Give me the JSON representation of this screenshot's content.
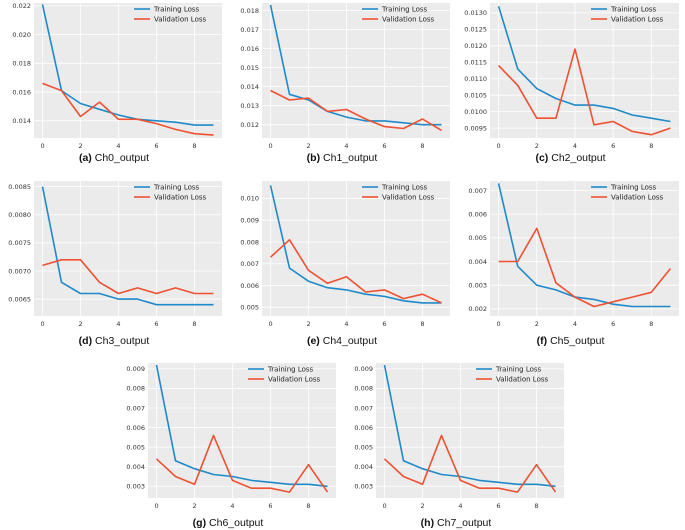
{
  "colors": {
    "training": "#1f8ac9",
    "validation": "#ef5131",
    "plot_bg": "#ebebeb",
    "grid": "#ffffff"
  },
  "chart_data": [
    {
      "id": "a",
      "type": "line",
      "label": "(a)",
      "caption": "Ch0_output",
      "x": [
        0,
        1,
        2,
        3,
        4,
        5,
        6,
        7,
        8,
        9
      ],
      "xticks": [
        0,
        2,
        4,
        6,
        8
      ],
      "ylim": [
        0.0128,
        0.0222
      ],
      "yticks": [
        0.014,
        0.016,
        0.018,
        0.02,
        0.022
      ],
      "ytick_labels": [
        "0.014",
        "0.016",
        "0.018",
        "0.020",
        "0.022"
      ],
      "series": [
        {
          "name": "Training Loss",
          "values": [
            0.0221,
            0.0161,
            0.0152,
            0.0148,
            0.0144,
            0.0141,
            0.014,
            0.0139,
            0.0137,
            0.0137
          ]
        },
        {
          "name": "Validation Loss",
          "values": [
            0.0166,
            0.0161,
            0.0143,
            0.0153,
            0.0141,
            0.0141,
            0.0138,
            0.0134,
            0.0131,
            0.013
          ]
        }
      ]
    },
    {
      "id": "b",
      "type": "line",
      "label": "(b)",
      "caption": "Ch1_output",
      "x": [
        0,
        1,
        2,
        3,
        4,
        5,
        6,
        7,
        8,
        9
      ],
      "xticks": [
        0,
        2,
        4,
        6,
        8
      ],
      "ylim": [
        0.0113,
        0.0184
      ],
      "yticks": [
        0.012,
        0.013,
        0.014,
        0.015,
        0.016,
        0.017,
        0.018
      ],
      "ytick_labels": [
        "0.012",
        "0.013",
        "0.014",
        "0.015",
        "0.016",
        "0.017",
        "0.018"
      ],
      "series": [
        {
          "name": "Training Loss",
          "values": [
            0.0183,
            0.0136,
            0.0133,
            0.0127,
            0.0124,
            0.0122,
            0.0122,
            0.0121,
            0.012,
            0.012
          ]
        },
        {
          "name": "Validation Loss",
          "values": [
            0.0138,
            0.0133,
            0.0134,
            0.0127,
            0.0128,
            0.0123,
            0.0119,
            0.0118,
            0.0123,
            0.0117
          ]
        }
      ]
    },
    {
      "id": "c",
      "type": "line",
      "label": "(c)",
      "caption": "Ch2_output",
      "x": [
        0,
        1,
        2,
        3,
        4,
        5,
        6,
        7,
        8,
        9
      ],
      "xticks": [
        0,
        2,
        4,
        6,
        8
      ],
      "ylim": [
        0.0092,
        0.0133
      ],
      "yticks": [
        0.0095,
        0.01,
        0.0105,
        0.011,
        0.0115,
        0.012,
        0.0125,
        0.013
      ],
      "ytick_labels": [
        "0.0095",
        "0.0100",
        "0.0105",
        "0.0110",
        "0.0115",
        "0.0120",
        "0.0125",
        "0.0130"
      ],
      "series": [
        {
          "name": "Training Loss",
          "values": [
            0.0132,
            0.0113,
            0.0107,
            0.0104,
            0.0102,
            0.0102,
            0.0101,
            0.0099,
            0.0098,
            0.0097
          ]
        },
        {
          "name": "Validation Loss",
          "values": [
            0.0114,
            0.0108,
            0.0098,
            0.0098,
            0.0119,
            0.0096,
            0.0097,
            0.0094,
            0.0093,
            0.0095
          ]
        }
      ]
    },
    {
      "id": "d",
      "type": "line",
      "label": "(d)",
      "caption": "Ch3_output",
      "x": [
        0,
        1,
        2,
        3,
        4,
        5,
        6,
        7,
        8,
        9
      ],
      "xticks": [
        0,
        2,
        4,
        6,
        8
      ],
      "ylim": [
        0.0062,
        0.0086
      ],
      "yticks": [
        0.0065,
        0.007,
        0.0075,
        0.008,
        0.0085
      ],
      "ytick_labels": [
        "0.0065",
        "0.0070",
        "0.0075",
        "0.0080",
        "0.0085"
      ],
      "series": [
        {
          "name": "Training Loss",
          "values": [
            0.0085,
            0.0068,
            0.0066,
            0.0066,
            0.0065,
            0.0065,
            0.0064,
            0.0064,
            0.0064,
            0.0064
          ]
        },
        {
          "name": "Validation Loss",
          "values": [
            0.0071,
            0.0072,
            0.0072,
            0.0068,
            0.0066,
            0.0067,
            0.0066,
            0.0067,
            0.0066,
            0.0066
          ]
        }
      ]
    },
    {
      "id": "e",
      "type": "line",
      "label": "(e)",
      "caption": "Ch4_output",
      "x": [
        0,
        1,
        2,
        3,
        4,
        5,
        6,
        7,
        8,
        9
      ],
      "xticks": [
        0,
        2,
        4,
        6,
        8
      ],
      "ylim": [
        0.0046,
        0.0108
      ],
      "yticks": [
        0.005,
        0.006,
        0.007,
        0.008,
        0.009,
        0.01
      ],
      "ytick_labels": [
        "0.005",
        "0.006",
        "0.007",
        "0.008",
        "0.009",
        "0.010"
      ],
      "series": [
        {
          "name": "Training Loss",
          "values": [
            0.0106,
            0.0068,
            0.0062,
            0.0059,
            0.0058,
            0.0056,
            0.0055,
            0.0053,
            0.0052,
            0.0052
          ]
        },
        {
          "name": "Validation Loss",
          "values": [
            0.0073,
            0.0081,
            0.0067,
            0.0061,
            0.0064,
            0.0057,
            0.0058,
            0.0054,
            0.0056,
            0.0052
          ]
        }
      ]
    },
    {
      "id": "f",
      "type": "line",
      "label": "(f)",
      "caption": "Ch5_output",
      "x": [
        0,
        1,
        2,
        3,
        4,
        5,
        6,
        7,
        8,
        9
      ],
      "xticks": [
        0,
        2,
        4,
        6,
        8
      ],
      "ylim": [
        0.0017,
        0.0074
      ],
      "yticks": [
        0.002,
        0.003,
        0.004,
        0.005,
        0.006,
        0.007
      ],
      "ytick_labels": [
        "0.002",
        "0.003",
        "0.004",
        "0.005",
        "0.006",
        "0.007"
      ],
      "series": [
        {
          "name": "Training Loss",
          "values": [
            0.0073,
            0.0038,
            0.003,
            0.0028,
            0.0025,
            0.0024,
            0.0022,
            0.0021,
            0.0021,
            0.0021
          ]
        },
        {
          "name": "Validation Loss",
          "values": [
            0.004,
            0.004,
            0.0054,
            0.0031,
            0.0025,
            0.0021,
            0.0023,
            0.0025,
            0.0027,
            0.0037
          ]
        }
      ]
    },
    {
      "id": "g",
      "type": "line",
      "label": "(g)",
      "caption": "Ch6_output",
      "x": [
        0,
        1,
        2,
        3,
        4,
        5,
        6,
        7,
        8,
        9
      ],
      "xticks": [
        0,
        2,
        4,
        6,
        8
      ],
      "ylim": [
        0.0024,
        0.0093
      ],
      "yticks": [
        0.003,
        0.004,
        0.005,
        0.006,
        0.007,
        0.008,
        0.009
      ],
      "ytick_labels": [
        "0.003",
        "0.004",
        "0.005",
        "0.006",
        "0.007",
        "0.008",
        "0.009"
      ],
      "series": [
        {
          "name": "Training Loss",
          "values": [
            0.0092,
            0.0043,
            0.0039,
            0.0036,
            0.0035,
            0.0033,
            0.0032,
            0.0031,
            0.0031,
            0.003
          ]
        },
        {
          "name": "Validation Loss",
          "values": [
            0.0044,
            0.0035,
            0.0031,
            0.0056,
            0.0033,
            0.0029,
            0.0029,
            0.0027,
            0.0041,
            0.0027
          ]
        }
      ]
    },
    {
      "id": "h",
      "type": "line",
      "label": "(h)",
      "caption": "Ch7_output",
      "x": [
        0,
        1,
        2,
        3,
        4,
        5,
        6,
        7,
        8,
        9
      ],
      "xticks": [
        0,
        2,
        4,
        6,
        8
      ],
      "ylim": [
        0.0024,
        0.0093
      ],
      "yticks": [
        0.003,
        0.004,
        0.005,
        0.006,
        0.007,
        0.008,
        0.009
      ],
      "ytick_labels": [
        "0.003",
        "0.004",
        "0.005",
        "0.006",
        "0.007",
        "0.008",
        "0.009"
      ],
      "series": [
        {
          "name": "Training Loss",
          "values": [
            0.0092,
            0.0043,
            0.0039,
            0.0036,
            0.0035,
            0.0033,
            0.0032,
            0.0031,
            0.0031,
            0.003
          ]
        },
        {
          "name": "Validation Loss",
          "values": [
            0.0044,
            0.0035,
            0.0031,
            0.0056,
            0.0033,
            0.0029,
            0.0029,
            0.0027,
            0.0041,
            0.0027
          ]
        }
      ]
    }
  ]
}
